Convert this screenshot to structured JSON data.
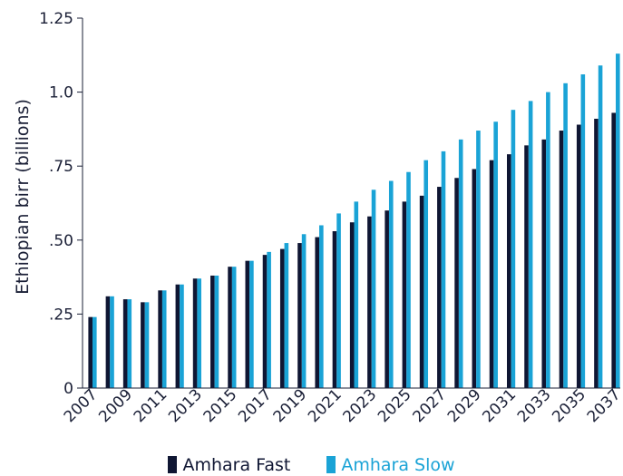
{
  "chart_data": {
    "type": "bar",
    "ylabel": "Ethiopian birr (billions)",
    "ylim": [
      0,
      1.25
    ],
    "yticks": [
      {
        "value": 0,
        "label": "0"
      },
      {
        "value": 0.25,
        "label": ".25"
      },
      {
        "value": 0.5,
        "label": ".50"
      },
      {
        "value": 0.75,
        "label": ".75"
      },
      {
        "value": 1.0,
        "label": "1.0"
      },
      {
        "value": 1.25,
        "label": "1.25"
      }
    ],
    "categories": [
      "2007",
      "2008",
      "2009",
      "2010",
      "2011",
      "2012",
      "2013",
      "2014",
      "2015",
      "2016",
      "2017",
      "2018",
      "2019",
      "2020",
      "2021",
      "2022",
      "2023",
      "2024",
      "2025",
      "2026",
      "2027",
      "2028",
      "2029",
      "2030",
      "2031",
      "2032",
      "2033",
      "2034",
      "2035",
      "2036",
      "2037"
    ],
    "xtick_labels": [
      "2007",
      "2009",
      "2011",
      "2013",
      "2015",
      "2017",
      "2019",
      "2021",
      "2023",
      "2025",
      "2027",
      "2029",
      "2031",
      "2033",
      "2035",
      "2037"
    ],
    "series": [
      {
        "name": "Amhara Fast",
        "color": "#0f1633",
        "values": [
          0.24,
          0.31,
          0.3,
          0.29,
          0.33,
          0.35,
          0.37,
          0.38,
          0.41,
          0.43,
          0.45,
          0.47,
          0.49,
          0.51,
          0.53,
          0.56,
          0.58,
          0.6,
          0.63,
          0.65,
          0.68,
          0.71,
          0.74,
          0.77,
          0.79,
          0.82,
          0.84,
          0.87,
          0.89,
          0.91,
          0.93
        ]
      },
      {
        "name": "Amhara Slow",
        "color": "#1aa3d6",
        "values": [
          0.24,
          0.31,
          0.3,
          0.29,
          0.33,
          0.35,
          0.37,
          0.38,
          0.41,
          0.43,
          0.46,
          0.49,
          0.52,
          0.55,
          0.59,
          0.63,
          0.67,
          0.7,
          0.73,
          0.77,
          0.8,
          0.84,
          0.87,
          0.9,
          0.94,
          0.97,
          1.0,
          1.03,
          1.06,
          1.09,
          1.13
        ]
      }
    ],
    "legend_position": "bottom",
    "grid": false
  }
}
